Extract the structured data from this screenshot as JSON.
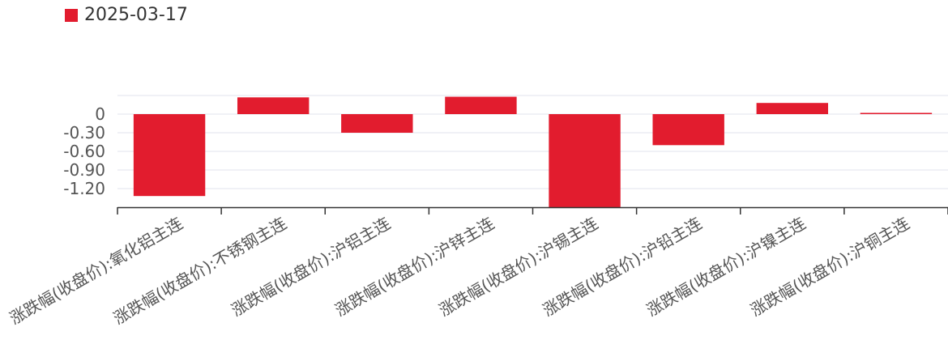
{
  "chart_data": {
    "type": "bar",
    "legend": {
      "position": "top-left"
    },
    "grid": true,
    "categories": [
      "涨跌幅(收盘价):氧化铝主连",
      "涨跌幅(收盘价):不锈钢主连",
      "涨跌幅(收盘价):沪铝主连",
      "涨跌幅(收盘价):沪锌主连",
      "涨跌幅(收盘价):沪锡主连",
      "涨跌幅(收盘价):沪铅主连",
      "涨跌幅(收盘价):沪镍主连",
      "涨跌幅(收盘价):沪铜主连"
    ],
    "series": [
      {
        "name": "2025-03-17",
        "color": "#e21c2e",
        "values": [
          -1.32,
          0.27,
          -0.3,
          0.28,
          -1.5,
          -0.5,
          0.18,
          0.02
        ]
      }
    ],
    "yticks": [
      0,
      -0.3,
      -0.6,
      -0.9,
      -1.2
    ],
    "ytick_labels": [
      "0",
      "-0.30",
      "-0.60",
      "-0.90",
      "-1.20"
    ],
    "ylim": [
      -1.5,
      0.3
    ]
  }
}
